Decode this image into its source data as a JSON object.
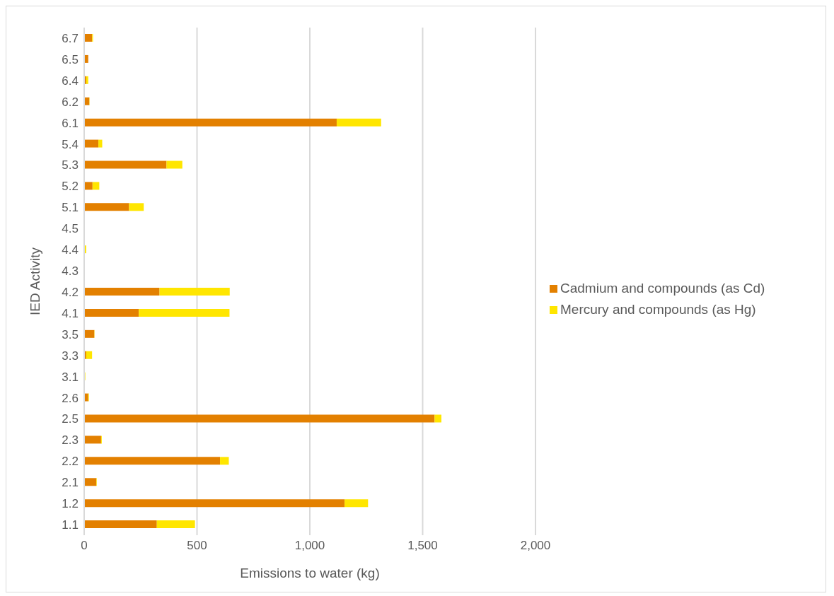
{
  "chart_data": {
    "type": "bar",
    "orientation": "horizontal",
    "stacked": true,
    "xlabel": "Emissions to water (kg)",
    "ylabel": "IED Activity",
    "categories": [
      "6.7",
      "6.5",
      "6.4",
      "6.2",
      "6.1",
      "5.4",
      "5.3",
      "5.2",
      "5.1",
      "4.5",
      "4.4",
      "4.3",
      "4.2",
      "4.1",
      "3.5",
      "3.3",
      "3.1",
      "2.6",
      "2.5",
      "2.3",
      "2.2",
      "2.1",
      "1.2",
      "1.1"
    ],
    "series": [
      {
        "name": "Cadmium and compounds (as Cd)",
        "color": "#e38000",
        "values": [
          35,
          18,
          9,
          23,
          1119,
          63,
          365,
          37,
          199,
          0,
          3,
          0,
          334,
          242,
          45,
          9,
          0,
          18,
          1553,
          75,
          602,
          54,
          1154,
          322
        ]
      },
      {
        "name": "Mercury and compounds (as Hg)",
        "color": "#ffe600",
        "values": [
          4,
          0,
          9,
          1,
          197,
          17,
          70,
          30,
          65,
          0,
          6,
          0,
          311,
          402,
          1,
          26,
          5,
          3,
          30,
          3,
          39,
          2,
          104,
          169
        ]
      }
    ],
    "xlim": [
      0,
      2000
    ],
    "xticks": [
      0,
      500,
      {
        "value": 1000,
        "label": "1,000"
      },
      {
        "value": 1500,
        "label": "1,500"
      },
      {
        "value": 2000,
        "label": "2,000"
      }
    ],
    "grid": "x",
    "legend": "right"
  }
}
